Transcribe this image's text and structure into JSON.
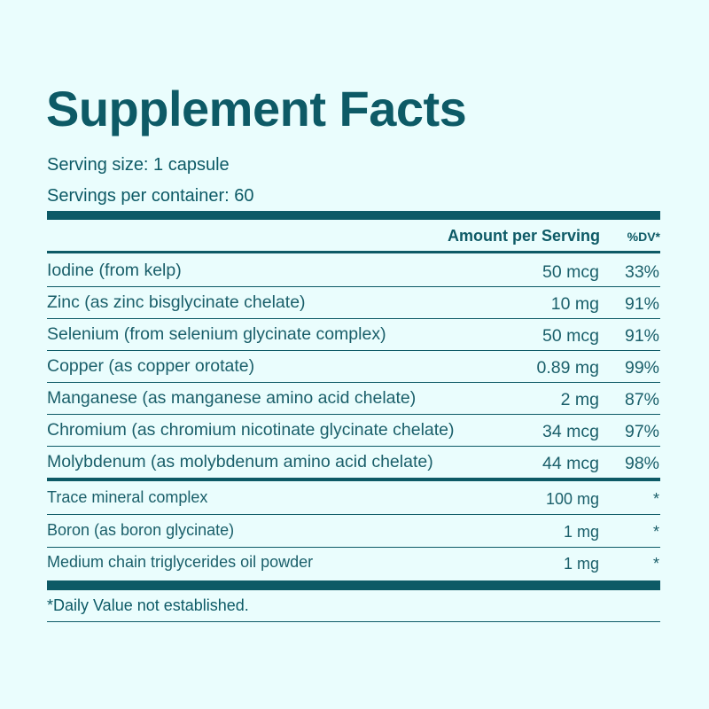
{
  "header": {
    "title": "Supplement Facts",
    "serving_size": "Serving size: 1 capsule",
    "servings_per_container": "Servings per container: 60"
  },
  "table": {
    "columns": [
      "Amount per Serving",
      "%DV*"
    ],
    "rows": [
      [
        "Iodine (from kelp)",
        "50 mcg",
        "33%"
      ],
      [
        "Zinc (as zinc bisglycinate chelate)",
        "10 mg",
        "91%"
      ],
      [
        "Selenium (from selenium glycinate complex)",
        "50 mcg",
        "91%"
      ],
      [
        "Copper (as copper orotate)",
        "0.89 mg",
        "99%"
      ],
      [
        "Manganese (as manganese amino acid chelate)",
        "2 mg",
        "87%"
      ],
      [
        "Chromium (as chromium nicotinate glycinate chelate)",
        "34 mcg",
        "97%"
      ],
      [
        "Molybdenum (as molybdenum amino acid chelate)",
        "44 mcg",
        "98%"
      ]
    ],
    "other_rows": [
      [
        "Trace mineral complex",
        "100 mg",
        "*"
      ],
      [
        "Boron (as boron glycinate)",
        "1 mg",
        "*"
      ],
      [
        "Medium chain triglycerides oil powder",
        "1 mg",
        "*"
      ]
    ]
  },
  "footnote": "*Daily Value not established."
}
